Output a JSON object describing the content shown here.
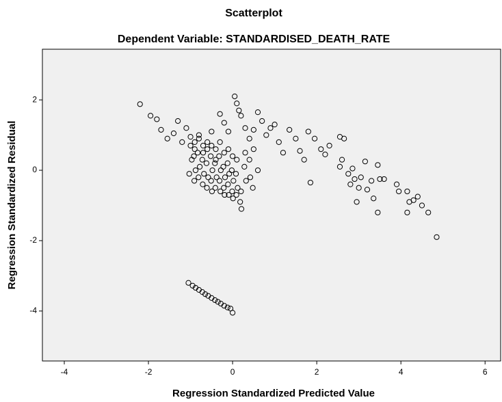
{
  "chart_data": {
    "type": "scatter",
    "title": "Scatterplot",
    "subtitle": "Dependent Variable: STANDARDISED_DEATH_RATE",
    "xlabel": "Regression Standardized Predicted Value",
    "ylabel": "Regression Standardized Residual",
    "color": "#000000",
    "background": "#f0f0f0",
    "xlim": [
      -4.52,
      6.37
    ],
    "ylim": [
      -5.42,
      3.44
    ],
    "xticks": [
      -4,
      -2,
      0,
      2,
      4,
      6
    ],
    "yticks": [
      -4,
      -2,
      0,
      2
    ],
    "x": [
      -2.2,
      -1.95,
      -1.8,
      -1.7,
      -1.55,
      -1.4,
      -1.3,
      -1.2,
      -1.1,
      -1.0,
      -0.9,
      -0.8,
      -0.7,
      -0.6,
      -0.5,
      -0.4,
      -0.3,
      -0.2,
      -0.1,
      0.05,
      0.1,
      0.15,
      0.2,
      0.3,
      0.4,
      0.5,
      0.6,
      0.7,
      0.8,
      0.9,
      1.0,
      1.1,
      1.2,
      1.35,
      1.5,
      1.6,
      1.7,
      1.8,
      1.85,
      1.95,
      2.1,
      2.2,
      2.3,
      2.55,
      2.6,
      2.55,
      2.65,
      2.75,
      2.8,
      2.85,
      2.9,
      2.95,
      3.0,
      3.05,
      3.15,
      3.2,
      3.3,
      3.35,
      3.45,
      3.45,
      3.5,
      3.6,
      3.9,
      3.95,
      4.15,
      4.2,
      4.15,
      4.3,
      4.4,
      4.5,
      4.65,
      4.85,
      -1.0,
      -0.97,
      -1.03,
      -0.9,
      -0.92,
      -0.88,
      -0.91,
      -0.8,
      -0.83,
      -0.78,
      -0.81,
      -0.7,
      -0.72,
      -0.68,
      -0.71,
      -0.6,
      -0.62,
      -0.58,
      -0.61,
      -0.5,
      -0.52,
      -0.48,
      -0.51,
      -0.49,
      -0.4,
      -0.42,
      -0.38,
      -0.41,
      -0.3,
      -0.32,
      -0.28,
      -0.31,
      -0.29,
      -0.2,
      -0.22,
      -0.18,
      -0.21,
      -0.19,
      -0.1,
      -0.12,
      -0.08,
      -0.11,
      -0.09,
      0.0,
      -0.02,
      0.02,
      -0.01,
      0.01,
      0.1,
      0.08,
      0.12,
      0.09,
      0.2,
      0.18,
      0.21,
      0.3,
      0.28,
      0.32,
      0.4,
      0.42,
      0.5,
      0.48,
      0.6,
      -1.05,
      -0.95,
      -0.88,
      -0.8,
      -0.72,
      -0.65,
      -0.58,
      -0.5,
      -0.42,
      -0.35,
      -0.28,
      -0.2,
      -0.12,
      -0.05,
      0.0
    ],
    "values": [
      1.88,
      1.55,
      1.45,
      1.15,
      0.9,
      1.05,
      1.4,
      0.8,
      1.2,
      0.95,
      0.6,
      1.0,
      0.5,
      0.8,
      1.1,
      0.3,
      1.6,
      1.35,
      1.1,
      2.1,
      1.9,
      1.7,
      1.55,
      1.2,
      0.9,
      1.15,
      1.65,
      1.4,
      1.0,
      1.2,
      1.3,
      0.8,
      0.5,
      1.15,
      0.9,
      0.55,
      0.3,
      1.1,
      -0.35,
      0.9,
      0.6,
      0.45,
      0.7,
      0.95,
      0.3,
      0.1,
      0.9,
      -0.1,
      -0.4,
      0.05,
      -0.25,
      -0.9,
      -0.5,
      -0.2,
      0.25,
      -0.55,
      -0.3,
      -0.8,
      0.15,
      -1.2,
      -0.25,
      -0.25,
      -0.4,
      -0.6,
      -0.6,
      -0.9,
      -1.2,
      -0.85,
      -0.75,
      -1.0,
      -1.2,
      -1.9,
      0.7,
      0.3,
      -0.1,
      0.8,
      0.4,
      0.0,
      -0.3,
      0.9,
      0.5,
      0.1,
      -0.2,
      0.7,
      0.3,
      -0.1,
      -0.4,
      0.6,
      0.2,
      -0.2,
      -0.5,
      0.7,
      0.4,
      0.0,
      -0.3,
      -0.6,
      0.6,
      0.2,
      -0.2,
      -0.5,
      0.8,
      0.4,
      0.0,
      -0.3,
      -0.6,
      0.5,
      0.1,
      -0.2,
      -0.5,
      -0.7,
      0.6,
      0.2,
      -0.1,
      -0.4,
      -0.7,
      0.4,
      0.0,
      -0.3,
      -0.6,
      -0.8,
      0.3,
      -0.1,
      -0.5,
      -0.7,
      -0.6,
      -0.9,
      -1.1,
      0.5,
      0.1,
      -0.3,
      0.3,
      -0.2,
      0.6,
      -0.5,
      0.0,
      -3.2,
      -3.28,
      -3.34,
      -3.4,
      -3.46,
      -3.52,
      -3.57,
      -3.63,
      -3.69,
      -3.74,
      -3.79,
      -3.85,
      -3.9,
      -3.93,
      -4.05
    ]
  }
}
